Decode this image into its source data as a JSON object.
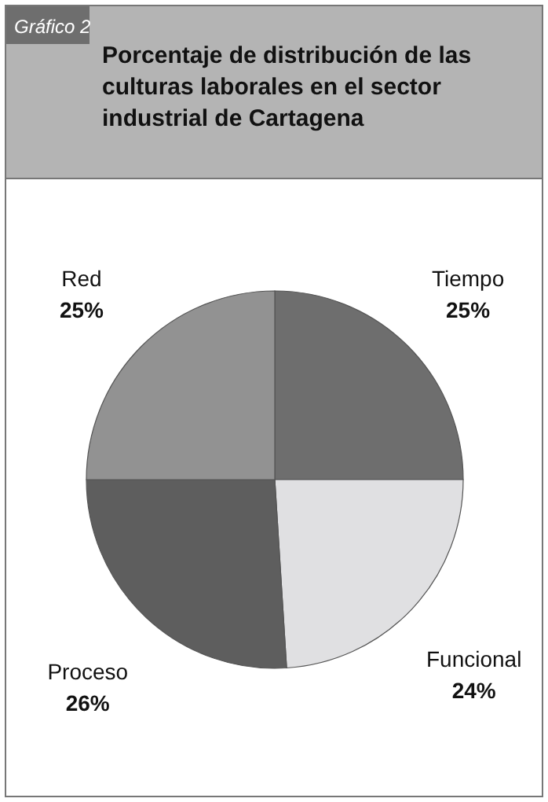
{
  "chart_data": {
    "type": "pie",
    "title": "Porcentaje de distribución de las culturas laborales en el sector industrial de Cartagena",
    "annotations": [
      "Gráfico 2"
    ],
    "categories": [
      "Tiempo",
      "Funcional",
      "Proceso",
      "Red"
    ],
    "values": [
      25,
      24,
      26,
      25
    ],
    "colors": [
      "#6e6e6e",
      "#e0e0e2",
      "#5e5e5e",
      "#929292"
    ],
    "value_labels": [
      "25%",
      "24%",
      "26%",
      "25%"
    ]
  }
}
